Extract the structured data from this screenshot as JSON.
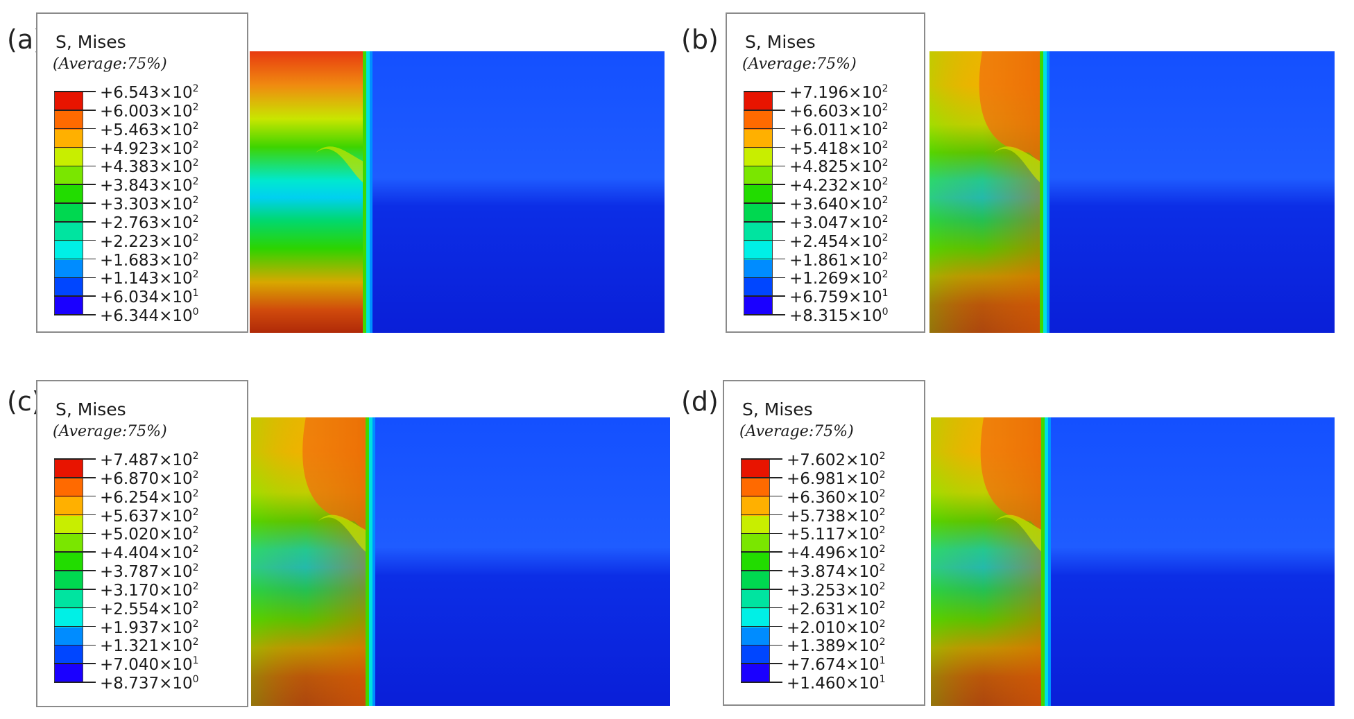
{
  "legend_title": "S, Mises",
  "legend_subtitle": "(Average:75%)",
  "colormap": [
    "#1a00ff",
    "#0046ff",
    "#008cff",
    "#00c8ff",
    "#00f0e6",
    "#00e4a0",
    "#00d850",
    "#22dc00",
    "#7ae600",
    "#c8ee00",
    "#ffe600",
    "#ffb000",
    "#ff6a00",
    "#e81400"
  ],
  "panels": [
    {
      "label": "(a)",
      "ticks": [
        {
          "mantissa": "+6.543",
          "exp": "2"
        },
        {
          "mantissa": "+6.003",
          "exp": "2"
        },
        {
          "mantissa": "+5.463",
          "exp": "2"
        },
        {
          "mantissa": "+4.923",
          "exp": "2"
        },
        {
          "mantissa": "+4.383",
          "exp": "2"
        },
        {
          "mantissa": "+3.843",
          "exp": "2"
        },
        {
          "mantissa": "+3.303",
          "exp": "2"
        },
        {
          "mantissa": "+2.763",
          "exp": "2"
        },
        {
          "mantissa": "+2.223",
          "exp": "2"
        },
        {
          "mantissa": "+1.683",
          "exp": "2"
        },
        {
          "mantissa": "+1.143",
          "exp": "2"
        },
        {
          "mantissa": "+6.034",
          "exp": "1"
        },
        {
          "mantissa": "+6.344",
          "exp": "0"
        }
      ]
    },
    {
      "label": "(b)",
      "ticks": [
        {
          "mantissa": "+7.196",
          "exp": "2"
        },
        {
          "mantissa": "+6.603",
          "exp": "2"
        },
        {
          "mantissa": "+6.011",
          "exp": "2"
        },
        {
          "mantissa": "+5.418",
          "exp": "2"
        },
        {
          "mantissa": "+4.825",
          "exp": "2"
        },
        {
          "mantissa": "+4.232",
          "exp": "2"
        },
        {
          "mantissa": "+3.640",
          "exp": "2"
        },
        {
          "mantissa": "+3.047",
          "exp": "2"
        },
        {
          "mantissa": "+2.454",
          "exp": "2"
        },
        {
          "mantissa": "+1.861",
          "exp": "2"
        },
        {
          "mantissa": "+1.269",
          "exp": "2"
        },
        {
          "mantissa": "+6.759",
          "exp": "1"
        },
        {
          "mantissa": "+8.315",
          "exp": "0"
        }
      ]
    },
    {
      "label": "(c)",
      "ticks": [
        {
          "mantissa": "+7.487",
          "exp": "2"
        },
        {
          "mantissa": "+6.870",
          "exp": "2"
        },
        {
          "mantissa": "+6.254",
          "exp": "2"
        },
        {
          "mantissa": "+5.637",
          "exp": "2"
        },
        {
          "mantissa": "+5.020",
          "exp": "2"
        },
        {
          "mantissa": "+4.404",
          "exp": "2"
        },
        {
          "mantissa": "+3.787",
          "exp": "2"
        },
        {
          "mantissa": "+3.170",
          "exp": "2"
        },
        {
          "mantissa": "+2.554",
          "exp": "2"
        },
        {
          "mantissa": "+1.937",
          "exp": "2"
        },
        {
          "mantissa": "+1.321",
          "exp": "2"
        },
        {
          "mantissa": "+7.040",
          "exp": "1"
        },
        {
          "mantissa": "+8.737",
          "exp": "0"
        }
      ]
    },
    {
      "label": "(d)",
      "ticks": [
        {
          "mantissa": "+7.602",
          "exp": "2"
        },
        {
          "mantissa": "+6.981",
          "exp": "2"
        },
        {
          "mantissa": "+6.360",
          "exp": "2"
        },
        {
          "mantissa": "+5.738",
          "exp": "2"
        },
        {
          "mantissa": "+5.117",
          "exp": "2"
        },
        {
          "mantissa": "+4.496",
          "exp": "2"
        },
        {
          "mantissa": "+3.874",
          "exp": "2"
        },
        {
          "mantissa": "+3.253",
          "exp": "2"
        },
        {
          "mantissa": "+2.631",
          "exp": "2"
        },
        {
          "mantissa": "+2.010",
          "exp": "2"
        },
        {
          "mantissa": "+1.389",
          "exp": "2"
        },
        {
          "mantissa": "+7.674",
          "exp": "1"
        },
        {
          "mantissa": "+1.460",
          "exp": "1"
        }
      ]
    }
  ]
}
